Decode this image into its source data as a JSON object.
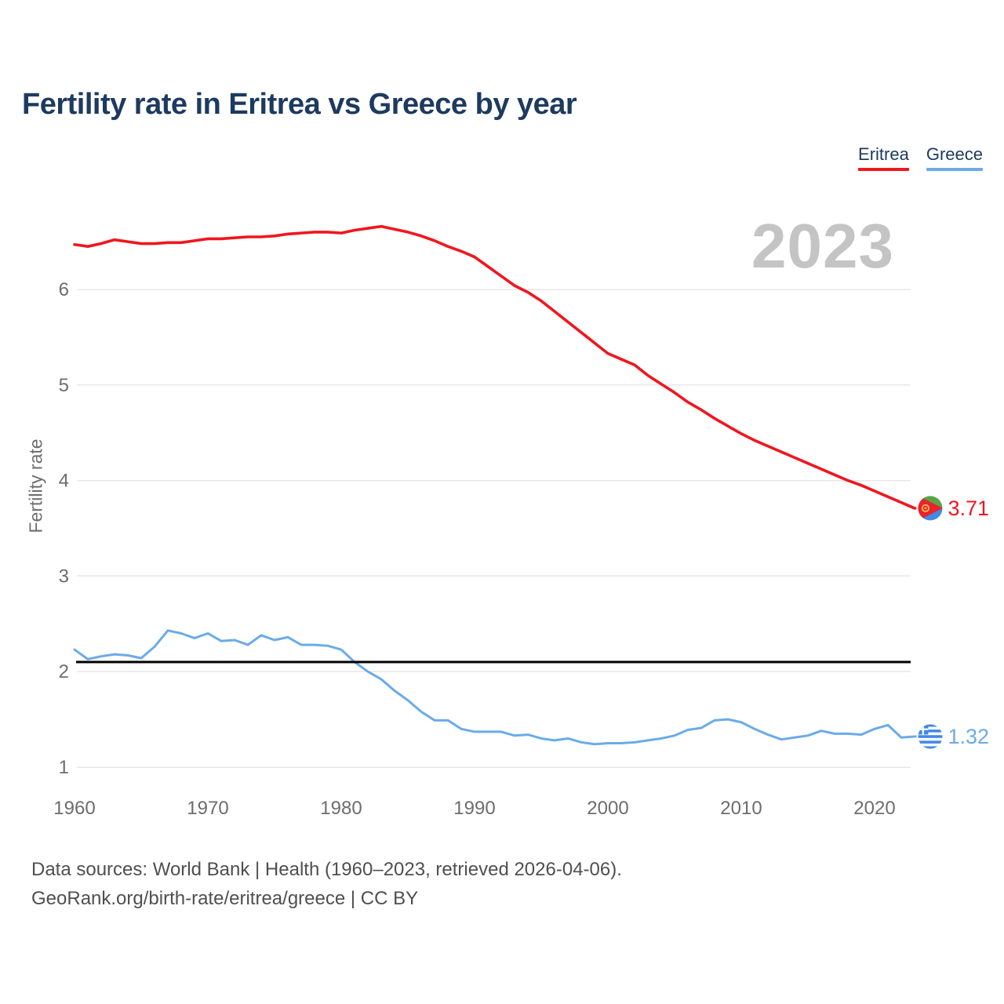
{
  "page": {
    "title": "Fertility rate in Eritrea vs Greece by year"
  },
  "legend": {
    "items": [
      {
        "label": "Eritrea",
        "color": "#f0161e"
      },
      {
        "label": "Greece",
        "color": "#6babe8"
      }
    ]
  },
  "watermark": "2023",
  "chart_data": {
    "type": "line",
    "title": "Fertility rate in Eritrea vs Greece by year",
    "xlabel": "",
    "ylabel": "Fertility rate",
    "x_ticks": [
      1960,
      1970,
      1980,
      1990,
      2000,
      2010,
      2020
    ],
    "y_ticks": [
      1,
      2,
      3,
      4,
      5,
      6
    ],
    "xlim": [
      1960,
      2023
    ],
    "ylim": [
      1,
      6.9
    ],
    "grid": "horizontal",
    "legend_position": "top-right",
    "reference_line": {
      "value": 2.1,
      "color": "#000000"
    },
    "x": [
      1960,
      1961,
      1962,
      1963,
      1964,
      1965,
      1966,
      1967,
      1968,
      1969,
      1970,
      1971,
      1972,
      1973,
      1974,
      1975,
      1976,
      1977,
      1978,
      1979,
      1980,
      1981,
      1982,
      1983,
      1984,
      1985,
      1986,
      1987,
      1988,
      1989,
      1990,
      1991,
      1992,
      1993,
      1994,
      1995,
      1996,
      1997,
      1998,
      1999,
      2000,
      2001,
      2002,
      2003,
      2004,
      2005,
      2006,
      2007,
      2008,
      2009,
      2010,
      2011,
      2012,
      2013,
      2014,
      2015,
      2016,
      2017,
      2018,
      2019,
      2020,
      2021,
      2022,
      2023
    ],
    "series": [
      {
        "name": "Eritrea",
        "color": "#f0161e",
        "end_label": "3.71",
        "end_value": 3.71,
        "flag": "eritrea",
        "values": [
          6.47,
          6.45,
          6.48,
          6.52,
          6.5,
          6.48,
          6.48,
          6.49,
          6.49,
          6.51,
          6.53,
          6.53,
          6.54,
          6.55,
          6.55,
          6.56,
          6.58,
          6.59,
          6.6,
          6.6,
          6.59,
          6.62,
          6.64,
          6.66,
          6.63,
          6.6,
          6.56,
          6.51,
          6.45,
          6.4,
          6.34,
          6.24,
          6.14,
          6.04,
          5.97,
          5.88,
          5.77,
          5.66,
          5.55,
          5.44,
          5.33,
          5.27,
          5.21,
          5.1,
          5.01,
          4.92,
          4.82,
          4.74,
          4.65,
          4.57,
          4.49,
          4.42,
          4.36,
          4.3,
          4.24,
          4.18,
          4.12,
          4.06,
          4.0,
          3.95,
          3.89,
          3.83,
          3.77,
          3.71
        ]
      },
      {
        "name": "Greece",
        "color": "#6babe8",
        "end_label": "1.32",
        "end_value": 1.32,
        "flag": "greece",
        "values": [
          2.23,
          2.13,
          2.16,
          2.18,
          2.17,
          2.14,
          2.26,
          2.43,
          2.4,
          2.35,
          2.4,
          2.32,
          2.33,
          2.28,
          2.38,
          2.33,
          2.36,
          2.28,
          2.28,
          2.27,
          2.23,
          2.1,
          2.0,
          1.92,
          1.8,
          1.7,
          1.58,
          1.49,
          1.49,
          1.4,
          1.37,
          1.37,
          1.37,
          1.33,
          1.34,
          1.3,
          1.28,
          1.3,
          1.26,
          1.24,
          1.25,
          1.25,
          1.26,
          1.28,
          1.3,
          1.33,
          1.39,
          1.41,
          1.49,
          1.5,
          1.47,
          1.4,
          1.34,
          1.29,
          1.31,
          1.33,
          1.38,
          1.35,
          1.35,
          1.34,
          1.4,
          1.44,
          1.31,
          1.32
        ]
      }
    ]
  },
  "footer": {
    "line1": "Data sources: World Bank | Health (1960–2023, retrieved 2026-04-06).",
    "line2": "GeoRank.org/birth-rate/eritrea/greece | CC BY"
  }
}
